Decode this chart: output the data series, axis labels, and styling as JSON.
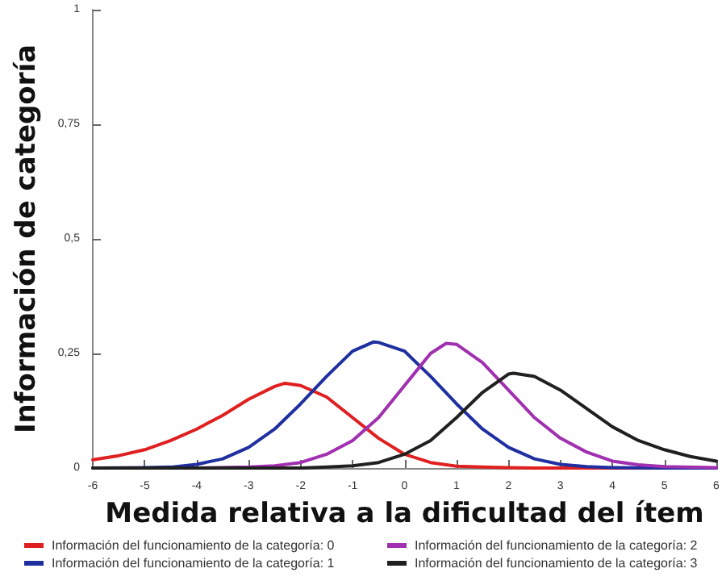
{
  "chart_data": {
    "type": "line",
    "xlabel": "Medida relativa a la dificultad del ítem",
    "ylabel": "Información de categoría",
    "xlim": [
      -6,
      6
    ],
    "xticks": [
      -6,
      -5,
      -4,
      -3,
      -2,
      -1,
      0,
      1,
      2,
      3,
      4,
      5,
      6
    ],
    "ylim": [
      0,
      1
    ],
    "yticks": [
      0,
      {
        "value": 0.25,
        "label": "0,25"
      },
      {
        "value": 0.5,
        "label": "0,5"
      },
      {
        "value": 0.75,
        "label": "0,75"
      },
      1
    ],
    "grid": false,
    "legend": "bottom",
    "marker": "none",
    "line_style": "solid",
    "series": [
      {
        "name": "Información del funcionamiento de la categoría: 0",
        "color": "#e02020",
        "x": [
          -6,
          -5.5,
          -5,
          -4.5,
          -4,
          -3.5,
          -3,
          -2.5,
          -2.3,
          -2,
          -1.5,
          -1,
          -0.5,
          0,
          0.5,
          1,
          1.5,
          2,
          2.5,
          3,
          4,
          5,
          6
        ],
        "values": [
          0.018,
          0.027,
          0.04,
          0.06,
          0.085,
          0.115,
          0.15,
          0.178,
          0.185,
          0.18,
          0.155,
          0.11,
          0.065,
          0.03,
          0.012,
          0.004,
          0.002,
          0.001,
          0,
          0,
          0,
          0,
          0
        ]
      },
      {
        "name": "Información del funcionamiento de la categoría: 1",
        "color": "#1f2fa0",
        "x": [
          -6,
          -5,
          -4.5,
          -4,
          -3.5,
          -3,
          -2.5,
          -2,
          -1.5,
          -1,
          -0.6,
          -0.5,
          0,
          0.5,
          1,
          1.5,
          2,
          2.5,
          3,
          3.5,
          4,
          5,
          6
        ],
        "values": [
          0,
          0.001,
          0.002,
          0.008,
          0.02,
          0.045,
          0.085,
          0.14,
          0.2,
          0.255,
          0.275,
          0.274,
          0.255,
          0.2,
          0.14,
          0.085,
          0.045,
          0.02,
          0.008,
          0.003,
          0.001,
          0,
          0
        ]
      },
      {
        "name": "Información del funcionamiento de la categoría: 2",
        "color": "#a030b0",
        "x": [
          -6,
          -4,
          -3,
          -2.5,
          -2,
          -1.5,
          -1,
          -0.5,
          0,
          0.5,
          0.8,
          1,
          1.5,
          2,
          2.5,
          3,
          3.5,
          4,
          4.5,
          5,
          6
        ],
        "values": [
          0,
          0,
          0.002,
          0.005,
          0.012,
          0.03,
          0.06,
          0.11,
          0.18,
          0.25,
          0.272,
          0.27,
          0.23,
          0.17,
          0.11,
          0.065,
          0.035,
          0.015,
          0.007,
          0.003,
          0.001
        ]
      },
      {
        "name": "Información del funcionamiento de la categoría: 3",
        "color": "#202020",
        "x": [
          -6,
          -2,
          -1.5,
          -1,
          -0.5,
          0,
          0.5,
          1,
          1.5,
          2,
          2.1,
          2.5,
          3,
          3.5,
          4,
          4.5,
          5,
          5.5,
          6
        ],
        "values": [
          0,
          0,
          0.002,
          0.005,
          0.012,
          0.03,
          0.06,
          0.11,
          0.165,
          0.205,
          0.207,
          0.2,
          0.17,
          0.13,
          0.09,
          0.06,
          0.04,
          0.025,
          0.015
        ]
      }
    ]
  }
}
